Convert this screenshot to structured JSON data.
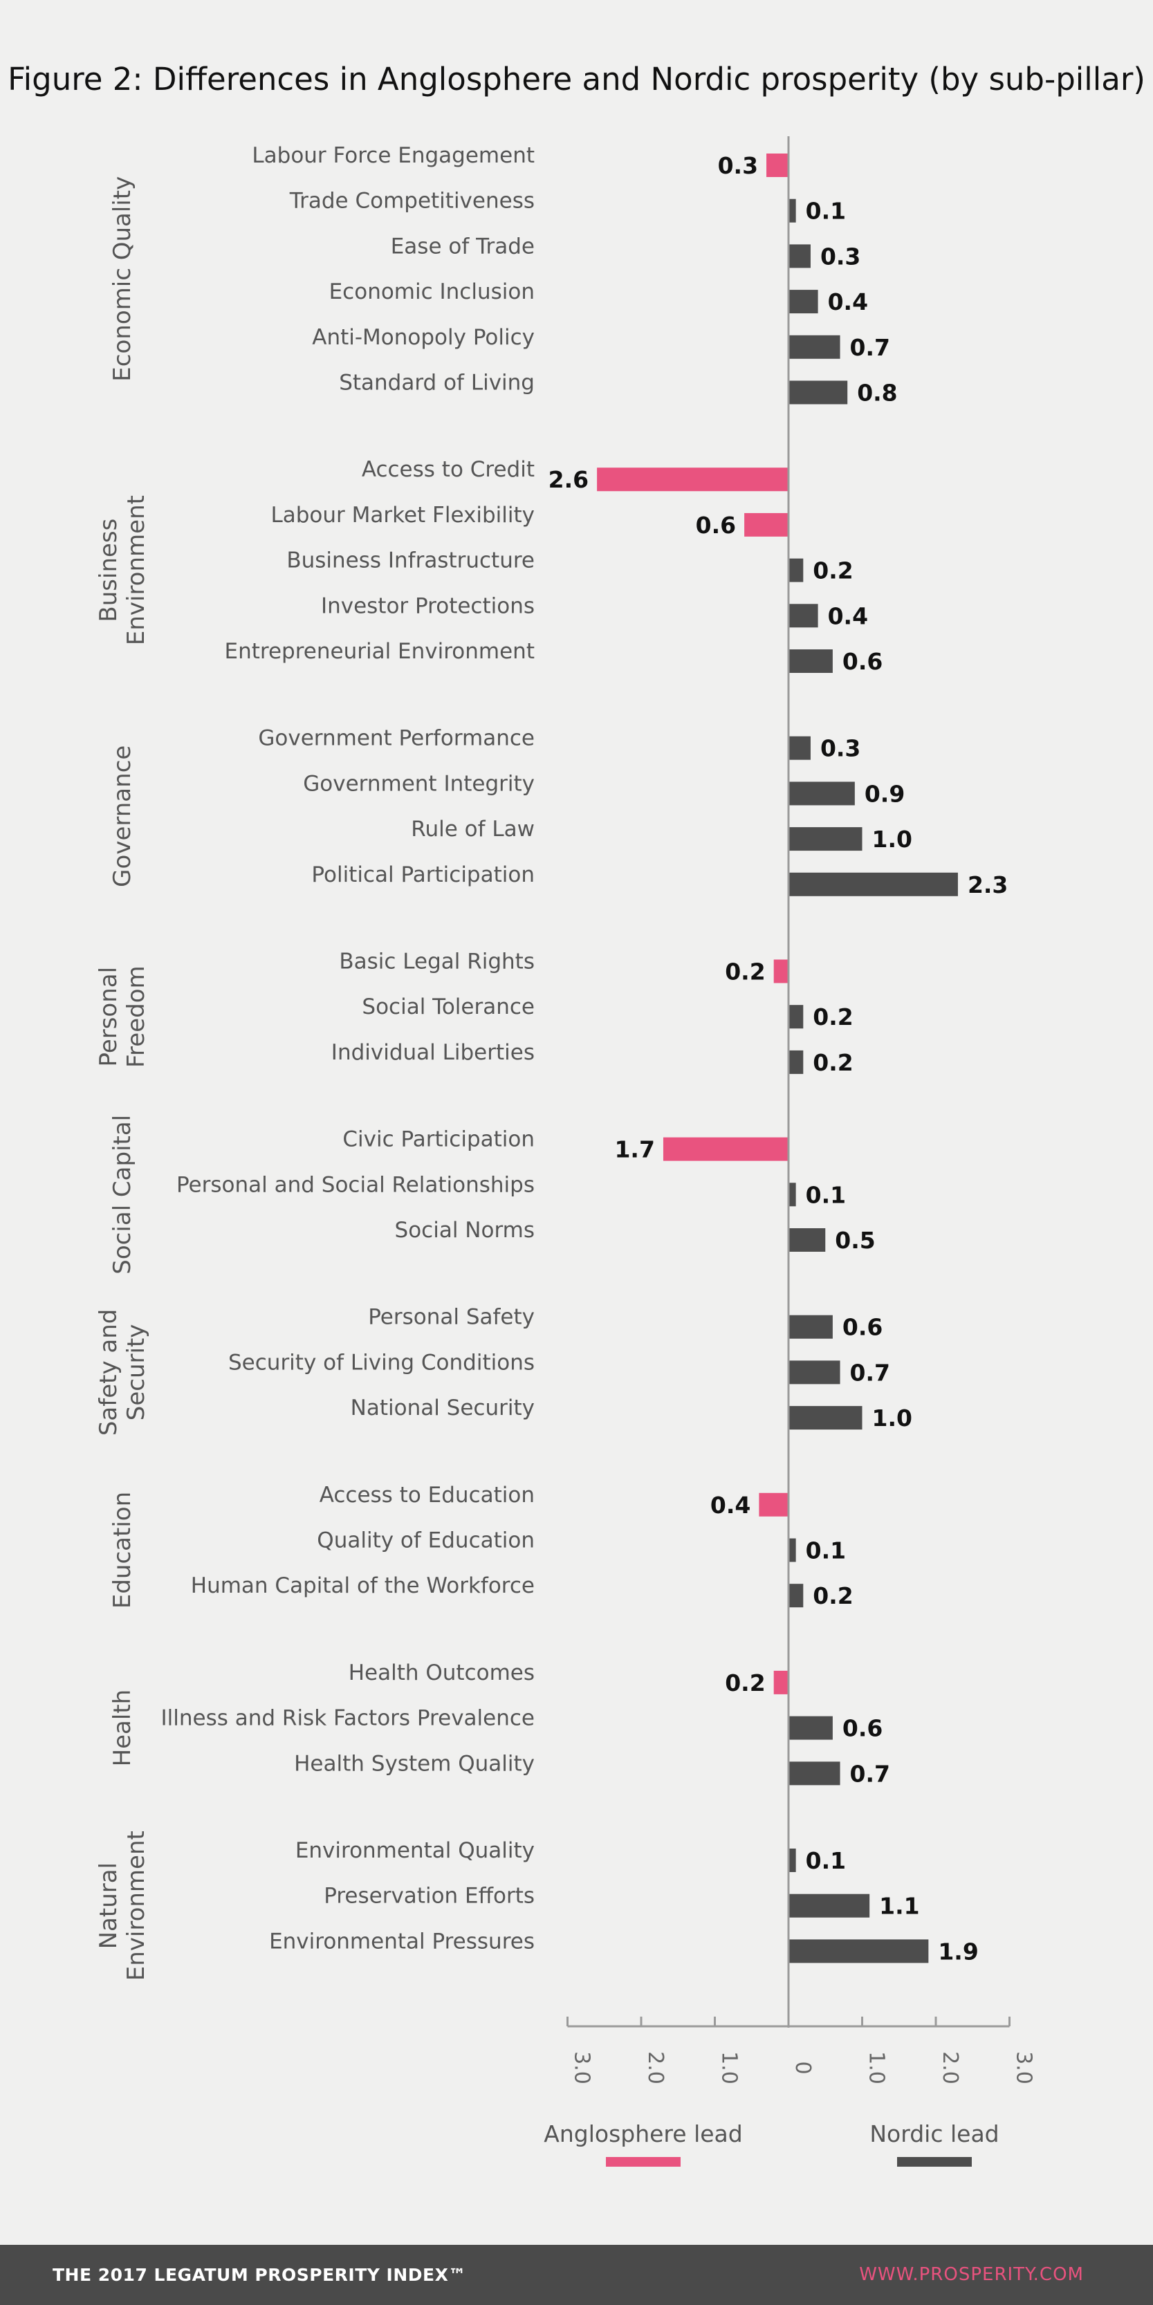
{
  "chart_data": {
    "type": "bar",
    "orientation": "horizontal",
    "title": "Figure 2: Differences in Anglosphere and Nordic prosperity (by sub-pillar)",
    "xlim": [
      -3.0,
      3.0
    ],
    "x_tick_labels": [
      "3.0",
      "2.0",
      "1.0",
      "0",
      "1.0",
      "2.0",
      "3.0"
    ],
    "legend": [
      {
        "label": "Anglosphere lead",
        "color": "#e9537f"
      },
      {
        "label": "Nordic lead",
        "color": "#4d4d4d"
      }
    ],
    "colors": {
      "anglosphere": "#e9537f",
      "nordic": "#4d4d4d"
    },
    "groups": [
      {
        "name": [
          "Economic Quality"
        ],
        "items": [
          {
            "label": "Labour Force Engagement",
            "value": -0.3,
            "value_label": "0.3"
          },
          {
            "label": "Trade Competitiveness",
            "value": 0.1,
            "value_label": "0.1"
          },
          {
            "label": "Ease of Trade",
            "value": 0.3,
            "value_label": "0.3"
          },
          {
            "label": "Economic Inclusion",
            "value": 0.4,
            "value_label": "0.4"
          },
          {
            "label": "Anti-Monopoly Policy",
            "value": 0.7,
            "value_label": "0.7"
          },
          {
            "label": "Standard of Living",
            "value": 0.8,
            "value_label": "0.8"
          }
        ]
      },
      {
        "name": [
          "Business",
          "Environment"
        ],
        "items": [
          {
            "label": "Access to Credit",
            "value": -2.6,
            "value_label": "2.6"
          },
          {
            "label": "Labour Market Flexibility",
            "value": -0.6,
            "value_label": "0.6"
          },
          {
            "label": "Business Infrastructure",
            "value": 0.2,
            "value_label": "0.2"
          },
          {
            "label": "Investor Protections",
            "value": 0.4,
            "value_label": "0.4"
          },
          {
            "label": "Entrepreneurial Environment",
            "value": 0.6,
            "value_label": "0.6"
          }
        ]
      },
      {
        "name": [
          "Governance"
        ],
        "items": [
          {
            "label": "Government Performance",
            "value": 0.3,
            "value_label": "0.3"
          },
          {
            "label": "Government Integrity",
            "value": 0.9,
            "value_label": "0.9"
          },
          {
            "label": "Rule of Law",
            "value": 1.0,
            "value_label": "1.0"
          },
          {
            "label": "Political Participation",
            "value": 2.3,
            "value_label": "2.3"
          }
        ]
      },
      {
        "name": [
          "Personal",
          "Freedom"
        ],
        "items": [
          {
            "label": "Basic Legal Rights",
            "value": -0.2,
            "value_label": "0.2"
          },
          {
            "label": "Social Tolerance",
            "value": 0.2,
            "value_label": "0.2"
          },
          {
            "label": "Individual Liberties",
            "value": 0.2,
            "value_label": "0.2"
          }
        ]
      },
      {
        "name": [
          "Social Capital"
        ],
        "items": [
          {
            "label": "Civic Participation",
            "value": -1.7,
            "value_label": "1.7"
          },
          {
            "label": "Personal and Social Relationships",
            "value": 0.1,
            "value_label": "0.1"
          },
          {
            "label": "Social Norms",
            "value": 0.5,
            "value_label": "0.5"
          }
        ]
      },
      {
        "name": [
          "Safety and",
          "Security"
        ],
        "items": [
          {
            "label": "Personal Safety",
            "value": 0.6,
            "value_label": "0.6"
          },
          {
            "label": "Security of Living Conditions",
            "value": 0.7,
            "value_label": "0.7"
          },
          {
            "label": "National Security",
            "value": 1.0,
            "value_label": "1.0"
          }
        ]
      },
      {
        "name": [
          "Education"
        ],
        "items": [
          {
            "label": "Access to Education",
            "value": -0.4,
            "value_label": "0.4"
          },
          {
            "label": "Quality of Education",
            "value": 0.1,
            "value_label": "0.1"
          },
          {
            "label": "Human Capital of the Workforce",
            "value": 0.2,
            "value_label": "0.2"
          }
        ]
      },
      {
        "name": [
          "Health"
        ],
        "items": [
          {
            "label": "Health Outcomes",
            "value": -0.2,
            "value_label": "0.2"
          },
          {
            "label": "Illness and Risk Factors Prevalence",
            "value": 0.6,
            "value_label": "0.6"
          },
          {
            "label": "Health System Quality",
            "value": 0.7,
            "value_label": "0.7"
          }
        ]
      },
      {
        "name": [
          "Natural",
          "Environment"
        ],
        "items": [
          {
            "label": "Environmental Quality",
            "value": 0.1,
            "value_label": "0.1"
          },
          {
            "label": "Preservation Efforts",
            "value": 1.1,
            "value_label": "1.1"
          },
          {
            "label": "Environmental Pressures",
            "value": 1.9,
            "value_label": "1.9"
          }
        ]
      }
    ]
  },
  "footer": {
    "left_text": "THE 2017 LEGATUM PROSPERITY INDEX™",
    "right_text": "WWW.PROSPERITY.COM"
  }
}
